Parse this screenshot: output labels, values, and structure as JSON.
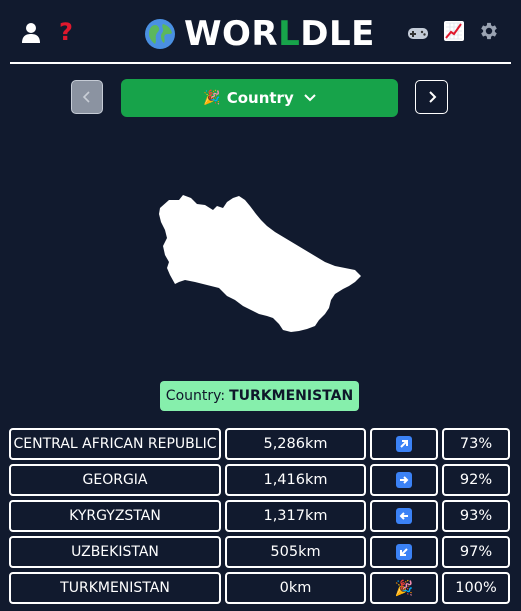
{
  "header": {
    "logo_main": "WOR",
    "logo_accent": "L",
    "logo_end": "DLE",
    "icons": {
      "user": "user-icon",
      "help": "question-mark-icon",
      "globe": "globe-icon",
      "games": "game-controller-icon",
      "stats": "chart-up-icon",
      "settings": "gear-icon"
    },
    "help_glyph": "?"
  },
  "mode_bar": {
    "mode_label": "Country",
    "mode_icon": "party-popper-icon",
    "prev_icon": "chevron-left-icon",
    "next_icon": "chevron-right-icon",
    "dropdown_icon": "chevron-down-icon"
  },
  "answer": {
    "prefix": "Country:",
    "name": "TURKMENISTAN"
  },
  "guesses": [
    {
      "country": "CENTRAL AFRICAN REPUBLIC",
      "distance": "5,286km",
      "direction": "arrow-up-right-icon",
      "proximity": "73%"
    },
    {
      "country": "GEORGIA",
      "distance": "1,416km",
      "direction": "arrow-right-icon",
      "proximity": "92%"
    },
    {
      "country": "KYRGYZSTAN",
      "distance": "1,317km",
      "direction": "arrow-left-icon",
      "proximity": "93%"
    },
    {
      "country": "UZBEKISTAN",
      "distance": "505km",
      "direction": "arrow-down-left-icon",
      "proximity": "97%"
    },
    {
      "country": "TURKMENISTAN",
      "distance": "0km",
      "direction": "party-popper-icon",
      "proximity": "100%"
    }
  ],
  "colors": {
    "background": "#111a2e",
    "accent_green": "#17a34a",
    "answer_badge": "#86efac",
    "help_red": "#e0182d",
    "arrow_blue": "#3b82f6"
  }
}
